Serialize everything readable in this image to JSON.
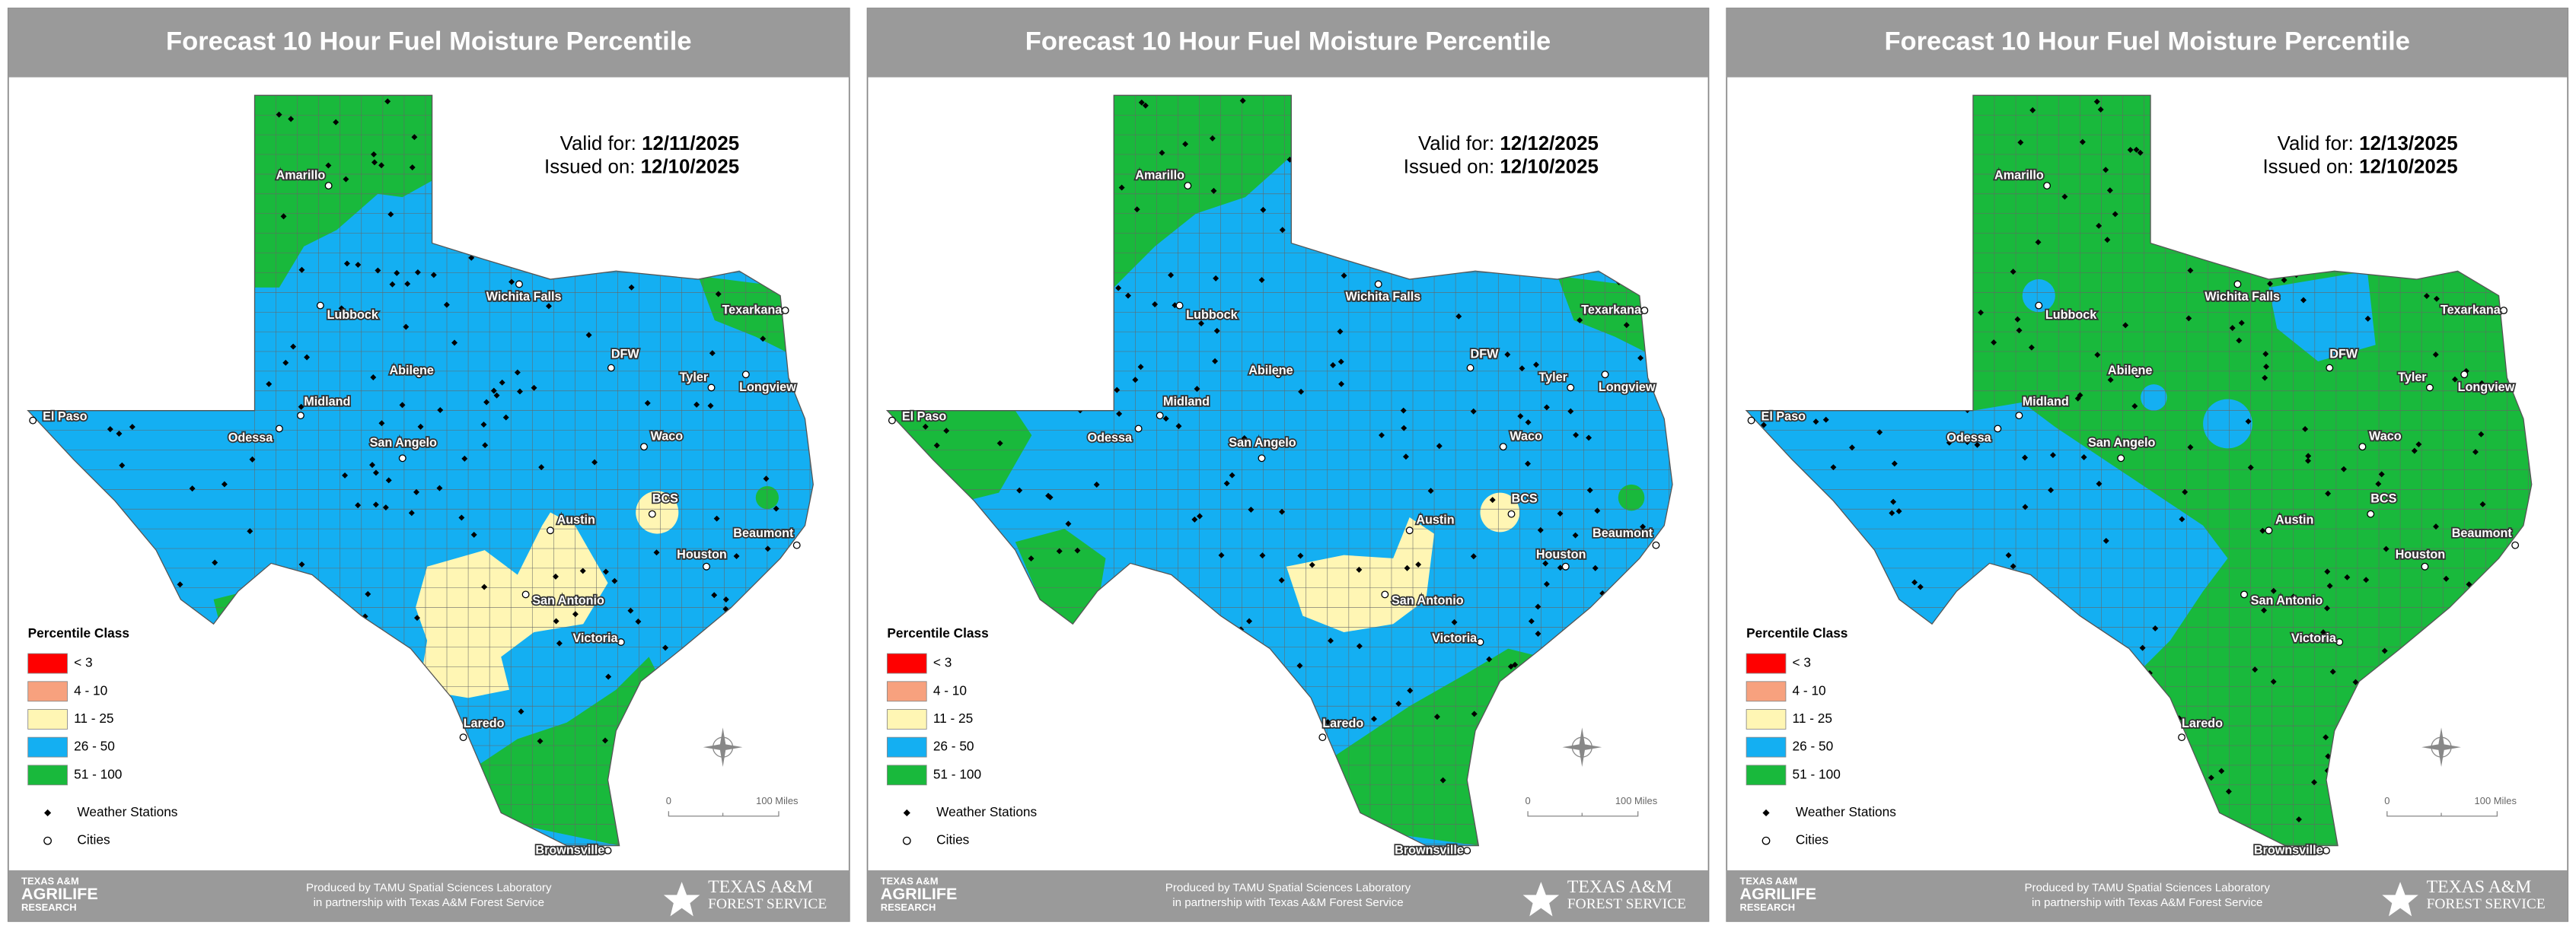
{
  "panels": [
    {
      "title": "Forecast 10 Hour Fuel Moisture Percentile",
      "valid_label": "Valid for:",
      "valid_date": "12/11/2025",
      "issued_label": "Issued on:",
      "issued_date": "12/10/2025"
    },
    {
      "title": "Forecast 10 Hour Fuel Moisture Percentile",
      "valid_label": "Valid for:",
      "valid_date": "12/12/2025",
      "issued_label": "Issued on:",
      "issued_date": "12/10/2025"
    },
    {
      "title": "Forecast 10 Hour Fuel Moisture Percentile",
      "valid_label": "Valid for:",
      "valid_date": "12/13/2025",
      "issued_label": "Issued on:",
      "issued_date": "12/10/2025"
    }
  ],
  "legend": {
    "title": "Percentile Class",
    "classes": [
      {
        "label": "< 3",
        "color": "#ff0000"
      },
      {
        "label": "4 - 10",
        "color": "#f7a17e"
      },
      {
        "label": "11 - 25",
        "color": "#fff6b4"
      },
      {
        "label": "26 - 50",
        "color": "#14aff2"
      },
      {
        "label": "51 - 100",
        "color": "#19b93c"
      }
    ],
    "stations": "Weather Stations",
    "cities": "Cities"
  },
  "cities": [
    "Amarillo",
    "Lubbock",
    "Wichita Falls",
    "Texarkana",
    "DFW",
    "Tyler",
    "Longview",
    "El Paso",
    "Midland",
    "Odessa",
    "Abilene",
    "San Angelo",
    "Waco",
    "BCS",
    "Austin",
    "Beaumont",
    "Houston",
    "San Antonio",
    "Victoria",
    "Laredo",
    "Brownsville"
  ],
  "scale": {
    "start": "0",
    "end": "100 Miles"
  },
  "footer": {
    "left": [
      "TEXAS A&M",
      "AGRILIFE",
      "RESEARCH"
    ],
    "center": [
      "Produced by TAMU Spatial Sciences Laboratory",
      "in partnership with Texas A&M Forest Service"
    ],
    "right": [
      "TEXAS A&M",
      "FOREST SERVICE"
    ]
  }
}
